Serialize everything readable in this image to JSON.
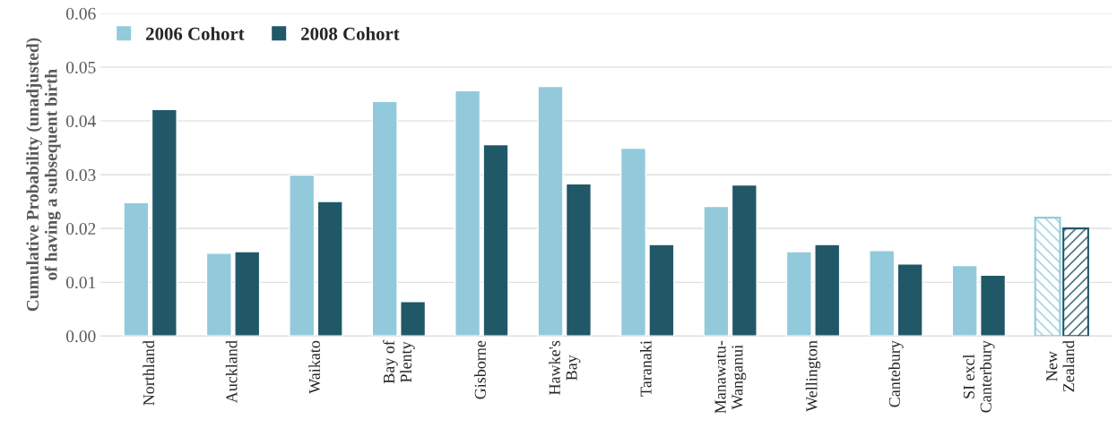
{
  "chart_data": {
    "type": "bar",
    "ylabel": "Cumulative Probability (unadjusted)\nof having a subsequent birth",
    "categories": [
      "Northland",
      "Auckland",
      "Waikato",
      "Bay of\nPlenty",
      "Gisborne",
      "Hawke's\nBay",
      "Taranaki",
      "Manawatu-\nWanganui",
      "Wellington",
      "Cantebury",
      "SI excl\nCanterbury",
      "New\nZealand"
    ],
    "series": [
      {
        "name": "2006 Cohort",
        "color": "#92cadc",
        "values": [
          0.0248,
          0.0154,
          0.0299,
          0.0436,
          0.0456,
          0.0464,
          0.0349,
          0.0241,
          0.0157,
          0.0159,
          0.0131,
          0.022
        ]
      },
      {
        "name": "2008 Cohort",
        "color": "#215868",
        "values": [
          0.0421,
          0.0157,
          0.025,
          0.0064,
          0.0356,
          0.0283,
          0.017,
          0.0281,
          0.017,
          0.0134,
          0.0113,
          0.02
        ]
      }
    ],
    "ylim": [
      0,
      0.06
    ],
    "yticks": [
      {
        "value": 0,
        "label": "0.00"
      },
      {
        "value": 0.01,
        "label": "0.01"
      },
      {
        "value": 0.02,
        "label": "0.02"
      },
      {
        "value": 0.03,
        "label": "0.03"
      },
      {
        "value": 0.04,
        "label": "0.04"
      },
      {
        "value": 0.05,
        "label": "0.05"
      },
      {
        "value": 0.06,
        "label": "0.06"
      }
    ],
    "grid": "y",
    "legend": "top left"
  }
}
